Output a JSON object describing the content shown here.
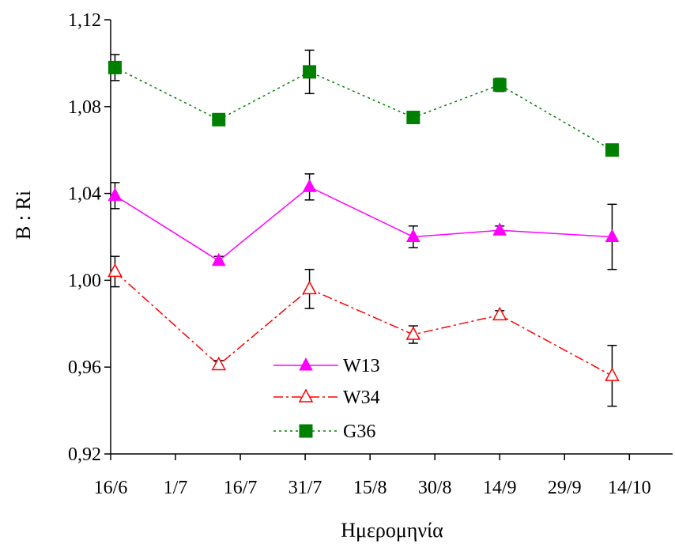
{
  "chart_data": {
    "type": "line",
    "title": "",
    "xlabel": "Ημερομηνία",
    "ylabel": "B : Ri",
    "x_tick_labels": [
      "16/6",
      "1/7",
      "16/7",
      "31/7",
      "15/8",
      "30/8",
      "14/9",
      "29/9",
      "14/10"
    ],
    "x_tick_days": [
      0,
      15,
      30,
      45,
      60,
      75,
      90,
      105,
      120
    ],
    "xlim": [
      0,
      130
    ],
    "ylim": [
      0.92,
      1.12
    ],
    "y_ticks": [
      0.92,
      0.96,
      1.0,
      1.04,
      1.08,
      1.12
    ],
    "y_tick_labels": [
      "0,92",
      "0,96",
      "1,00",
      "1,04",
      "1,08",
      "1,12"
    ],
    "grid": false,
    "legend_position": "bottom-center",
    "series": [
      {
        "name": "W13",
        "color": "#ff00ff",
        "line_style": "solid",
        "marker": "filled-triangle",
        "x": [
          1,
          25,
          46,
          70,
          90,
          116
        ],
        "y": [
          1.039,
          1.009,
          1.043,
          1.02,
          1.023,
          1.02
        ],
        "err": [
          0.006,
          0.002,
          0.006,
          0.005,
          0.002,
          0.015
        ]
      },
      {
        "name": "W34",
        "color": "#ff0000",
        "line_style": "dash-dot",
        "marker": "open-triangle",
        "x": [
          1,
          25,
          46,
          70,
          90,
          116
        ],
        "y": [
          1.004,
          0.961,
          0.996,
          0.975,
          0.984,
          0.956
        ],
        "err": [
          0.007,
          0.002,
          0.009,
          0.004,
          0.002,
          0.014
        ]
      },
      {
        "name": "G36",
        "color": "#008000",
        "line_style": "dotted",
        "marker": "filled-square",
        "x": [
          1,
          25,
          46,
          70,
          90,
          116
        ],
        "y": [
          1.098,
          1.074,
          1.096,
          1.075,
          1.09,
          1.06
        ],
        "err": [
          0.006,
          0.002,
          0.01,
          0.002,
          0.003,
          0.002
        ]
      }
    ]
  }
}
